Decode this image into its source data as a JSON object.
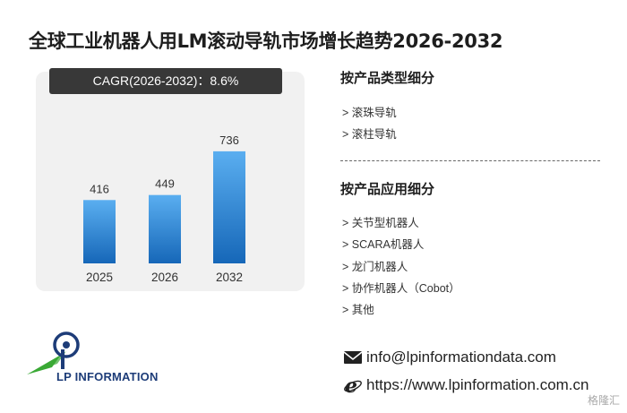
{
  "title": "全球工业机器人用LM滚动导轨市场增长趋势2026-2032",
  "cagr_label": "CAGR(2026-2032)：8.6%",
  "chart_data": {
    "type": "bar",
    "categories": [
      "2025",
      "2026",
      "2032"
    ],
    "values": [
      416,
      449,
      736
    ],
    "data_labels": [
      "416",
      "449",
      "736"
    ],
    "ylim": [
      0,
      800
    ],
    "grid": false,
    "bar_color_top": "#5aaef0",
    "bar_color_bottom": "#1667b8"
  },
  "segments": {
    "type_title": "按产品类型细分",
    "type_items": [
      "> 滚珠导轨",
      "> 滚柱导轨"
    ],
    "application_title": "按产品应用细分",
    "application_items": [
      "> 关节型机器人",
      "> SCARA机器人",
      "> 龙门机器人",
      "> 协作机器人（Cobot）",
      "> 其他"
    ]
  },
  "contact": {
    "email": "info@lpinformationdata.com",
    "website": "https://www.lpinformation.com.cn",
    "email_icon": "envelope-icon",
    "website_icon": "internet-explorer-icon"
  },
  "logo": {
    "text": "LP INFORMATION",
    "icon": "lp-information-logo"
  },
  "watermark_brand": "格隆汇",
  "colors": {
    "panel_bg": "#f1f1f1",
    "cagr_bg": "#383838",
    "logo_blue": "#1d3c78",
    "logo_green": "#3aa935"
  }
}
